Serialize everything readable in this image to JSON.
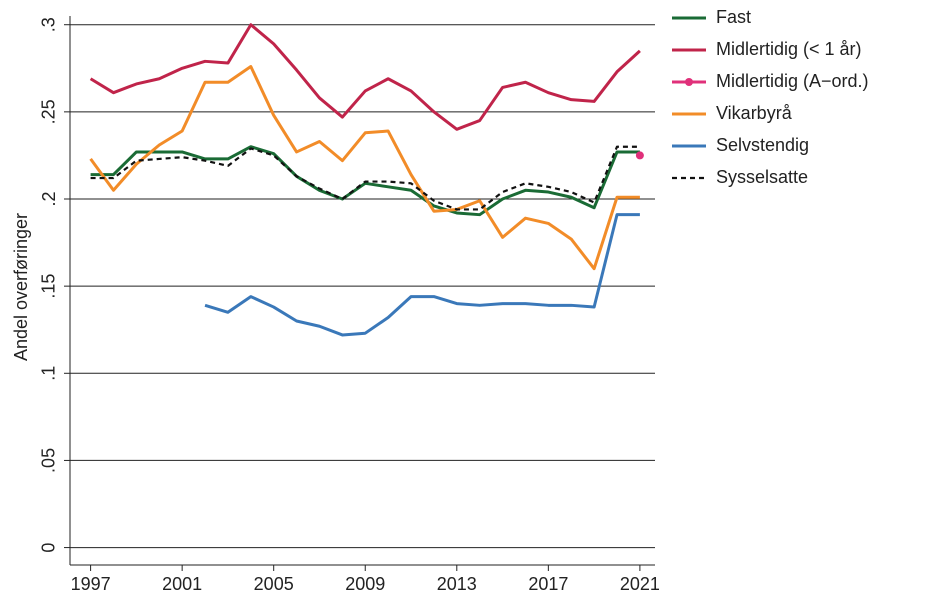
{
  "chart_data": {
    "type": "line",
    "y_label": "Andel overføringer",
    "x": [
      1997,
      1998,
      1999,
      2000,
      2001,
      2002,
      2003,
      2004,
      2005,
      2006,
      2007,
      2008,
      2009,
      2010,
      2011,
      2012,
      2013,
      2014,
      2015,
      2016,
      2017,
      2018,
      2019,
      2020,
      2021
    ],
    "xlim": [
      1996.1,
      2021.66
    ],
    "xticks": [
      1997,
      2001,
      2005,
      2009,
      2013,
      2017,
      2021
    ],
    "ylim": [
      -0.01,
      0.305
    ],
    "yticks": [
      0,
      {
        "value": 0.05,
        "label": ".05"
      },
      {
        "value": 0.1,
        "label": ".1"
      },
      {
        "value": 0.15,
        "label": ".15"
      },
      {
        "value": 0.2,
        "label": ".2"
      },
      {
        "value": 0.25,
        "label": ".25"
      },
      {
        "value": 0.3,
        "label": ".3"
      }
    ],
    "grid": true,
    "legend": "right",
    "series": [
      {
        "name": "Fast",
        "color": "#1a6b35",
        "values": [
          0.214,
          0.214,
          0.227,
          0.227,
          0.227,
          0.223,
          0.223,
          0.23,
          0.226,
          0.213,
          0.205,
          0.2,
          0.209,
          0.207,
          0.205,
          0.196,
          0.192,
          0.191,
          0.2,
          0.205,
          0.204,
          0.201,
          0.195,
          0.227,
          0.227
        ]
      },
      {
        "name": "Midlertidig (< 1 år)",
        "color": "#c0244a",
        "values": [
          0.269,
          0.261,
          0.266,
          0.269,
          0.275,
          0.279,
          0.278,
          0.3,
          0.289,
          0.274,
          0.258,
          0.247,
          0.262,
          0.269,
          0.262,
          0.25,
          0.24,
          0.245,
          0.264,
          0.267,
          0.261,
          0.257,
          0.256,
          0.273,
          0.285
        ]
      },
      {
        "name": "Midlertidig (A−ord.)",
        "color": "#e0307a",
        "marker": true,
        "values": [
          null,
          null,
          null,
          null,
          null,
          null,
          null,
          null,
          null,
          null,
          null,
          null,
          null,
          null,
          null,
          null,
          null,
          null,
          null,
          null,
          null,
          null,
          null,
          null,
          0.225
        ]
      },
      {
        "name": "Vikarbyrå",
        "color": "#f28c28",
        "values": [
          0.223,
          0.205,
          0.22,
          0.231,
          0.239,
          0.267,
          0.267,
          0.276,
          0.248,
          0.227,
          0.233,
          0.222,
          0.238,
          0.239,
          0.214,
          0.193,
          0.194,
          0.199,
          0.178,
          0.189,
          0.186,
          0.177,
          0.16,
          0.201,
          0.201
        ]
      },
      {
        "name": "Selvstendig",
        "color": "#3a78b9",
        "values": [
          null,
          null,
          null,
          null,
          null,
          0.139,
          0.135,
          0.144,
          0.138,
          0.13,
          0.127,
          0.122,
          0.123,
          0.132,
          0.144,
          0.144,
          0.14,
          0.139,
          0.14,
          0.14,
          0.139,
          0.139,
          0.138,
          0.191,
          0.191
        ]
      },
      {
        "name": "Sysselsatte",
        "color": "#111111",
        "dashed": true,
        "values": [
          0.212,
          0.212,
          0.222,
          0.223,
          0.224,
          0.222,
          0.219,
          0.229,
          0.225,
          0.213,
          0.206,
          0.2,
          0.21,
          0.21,
          0.209,
          0.199,
          0.194,
          0.194,
          0.204,
          0.209,
          0.207,
          0.204,
          0.198,
          0.23,
          0.23
        ]
      }
    ]
  }
}
